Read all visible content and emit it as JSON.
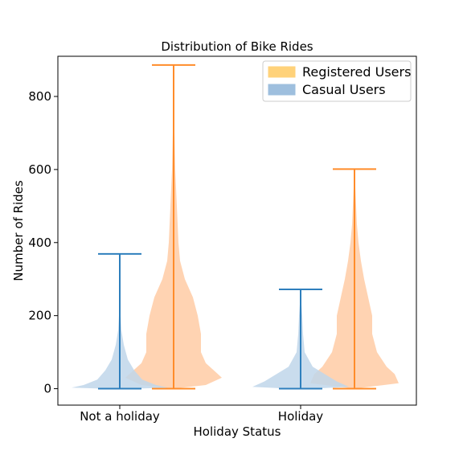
{
  "chart_data": {
    "type": "violin",
    "title": "Distribution of Bike Rides",
    "xlabel": "Holiday Status",
    "ylabel": "Number of Rides",
    "categories": [
      "Not a holiday",
      "Holiday"
    ],
    "ylim": [
      -45,
      910
    ],
    "yticks": [
      0,
      200,
      400,
      600,
      800
    ],
    "grid": false,
    "legend_position": "top-right",
    "series": [
      {
        "name": "Registered Users",
        "legend_color": "#ffd27a",
        "fill_color": "#ffcba4",
        "line_color": "#ff8c2a",
        "side": "right",
        "stats": [
          {
            "category": "Not a holiday",
            "min": 0,
            "max": 886
          },
          {
            "category": "Holiday",
            "min": 0,
            "max": 601
          }
        ],
        "profiles": [
          [
            [
              0,
              0
            ],
            [
              10,
              40
            ],
            [
              30,
              60
            ],
            [
              50,
              50
            ],
            [
              70,
              40
            ],
            [
              100,
              34
            ],
            [
              150,
              34
            ],
            [
              200,
              30
            ],
            [
              250,
              24
            ],
            [
              300,
              14
            ],
            [
              350,
              8
            ],
            [
              400,
              6
            ],
            [
              450,
              5
            ],
            [
              500,
              4
            ],
            [
              550,
              3
            ],
            [
              600,
              2
            ],
            [
              700,
              1
            ],
            [
              886,
              0
            ]
          ],
          [
            [
              0,
              0
            ],
            [
              15,
              55
            ],
            [
              40,
              50
            ],
            [
              60,
              40
            ],
            [
              100,
              28
            ],
            [
              150,
              22
            ],
            [
              200,
              22
            ],
            [
              250,
              17
            ],
            [
              300,
              12
            ],
            [
              350,
              8
            ],
            [
              400,
              5
            ],
            [
              450,
              3
            ],
            [
              500,
              2
            ],
            [
              601,
              0
            ]
          ]
        ]
      },
      {
        "name": "Casual Users",
        "legend_color": "#9ebfde",
        "fill_color": "#bfd6ea",
        "line_color": "#2e7fbd",
        "side": "left",
        "stats": [
          {
            "category": "Not a holiday",
            "min": 0,
            "max": 369
          },
          {
            "category": "Holiday",
            "min": 0,
            "max": 272
          }
        ],
        "profiles": [
          [
            [
              0,
              20
            ],
            [
              3,
              60
            ],
            [
              10,
              45
            ],
            [
              25,
              28
            ],
            [
              50,
              18
            ],
            [
              80,
              10
            ],
            [
              120,
              5
            ],
            [
              160,
              2
            ],
            [
              200,
              1
            ],
            [
              260,
              0.5
            ],
            [
              369,
              0
            ]
          ],
          [
            [
              0,
              15
            ],
            [
              5,
              60
            ],
            [
              20,
              45
            ],
            [
              40,
              30
            ],
            [
              60,
              15
            ],
            [
              100,
              5
            ],
            [
              150,
              3
            ],
            [
              200,
              2
            ],
            [
              230,
              1
            ],
            [
              272,
              0
            ]
          ]
        ]
      }
    ]
  }
}
